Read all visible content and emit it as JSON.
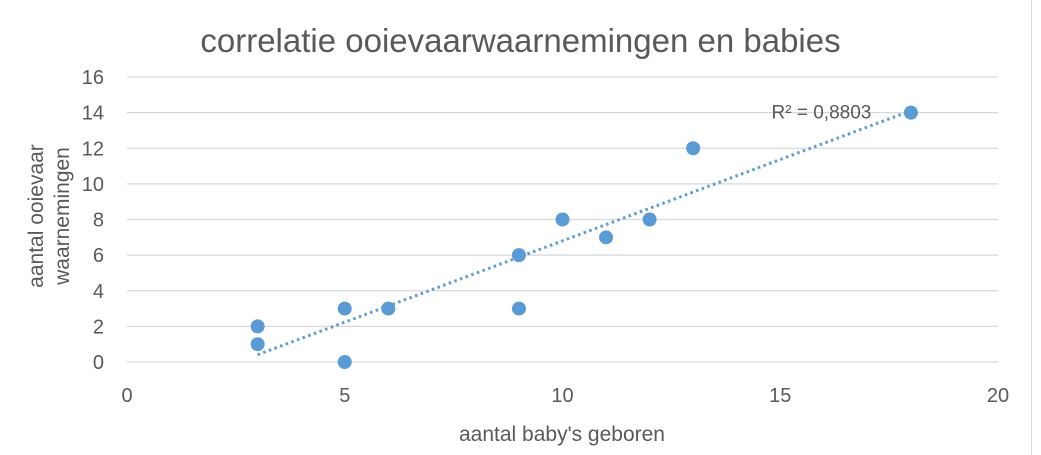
{
  "chart_data": {
    "type": "scatter",
    "title": "correlatie ooievaarwaarnemingen en babies",
    "xlabel": "aantal baby's geboren",
    "ylabel_lines": [
      "aantal ooievaar",
      "waarnemingen"
    ],
    "xlim": [
      0,
      20
    ],
    "ylim": [
      0,
      16
    ],
    "x_ticks": [
      0,
      5,
      10,
      15,
      20
    ],
    "y_ticks": [
      0,
      2,
      4,
      6,
      8,
      10,
      12,
      14,
      16
    ],
    "grid": true,
    "points": [
      {
        "x": 3,
        "y": 2
      },
      {
        "x": 3,
        "y": 1
      },
      {
        "x": 5,
        "y": 3
      },
      {
        "x": 5,
        "y": 0
      },
      {
        "x": 6,
        "y": 3
      },
      {
        "x": 9,
        "y": 6
      },
      {
        "x": 9,
        "y": 3
      },
      {
        "x": 10,
        "y": 8
      },
      {
        "x": 11,
        "y": 7
      },
      {
        "x": 12,
        "y": 8
      },
      {
        "x": 13,
        "y": 12
      },
      {
        "x": 18,
        "y": 14
      }
    ],
    "trendline": {
      "type": "linear",
      "style": "dotted",
      "x_range": [
        3,
        18
      ],
      "r_squared_label": "R² = 0,8803"
    },
    "colors": {
      "marker": "#5b9bd5",
      "trendline": "#5b9bd5",
      "grid": "#d9d9d9",
      "text": "#595959"
    }
  }
}
